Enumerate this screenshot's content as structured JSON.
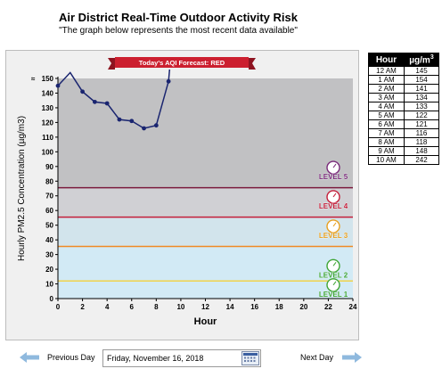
{
  "header": {
    "title": "Air District Real-Time Outdoor Activity Risk",
    "subtitle": "\"The graph below represents the most recent data available\""
  },
  "forecast_banner": "Today's AQI Forecast: RED",
  "chart_data": {
    "type": "line",
    "title": "",
    "xlabel": "Hour",
    "ylabel": "Hourly PM2.5 Concentration (µg/m3)",
    "xlim": [
      0,
      24
    ],
    "ylim": [
      0,
      150
    ],
    "x_ticks": [
      0,
      2,
      4,
      6,
      8,
      10,
      12,
      14,
      16,
      18,
      20,
      22,
      24
    ],
    "y_ticks": [
      0,
      10,
      20,
      30,
      40,
      50,
      60,
      70,
      80,
      90,
      100,
      110,
      120,
      130,
      140,
      150
    ],
    "y_break_symbol": "≈",
    "series": [
      {
        "x": [
          0,
          1,
          2,
          3,
          4,
          5,
          6,
          7,
          8,
          9,
          10
        ],
        "y": [
          145,
          154,
          141,
          134,
          133,
          122,
          121,
          116,
          118,
          148,
          242
        ],
        "color": "#1a2570"
      }
    ],
    "bands": [
      {
        "from": 0,
        "to": 12,
        "color": "#d2eaf5"
      },
      {
        "from": 12,
        "to": 35.5,
        "color": "#d2eaf5"
      },
      {
        "from": 35.5,
        "to": 55.5,
        "color": "#d2e4ec"
      },
      {
        "from": 55.5,
        "to": 75.5,
        "color": "#d0d0d4"
      },
      {
        "from": 75.5,
        "to": 150,
        "color": "#c1c1c3"
      }
    ],
    "threshold_lines": [
      {
        "value": 12,
        "color": "#f0d24a",
        "label": "LEVEL 2",
        "label_color": "#3fa535"
      },
      {
        "value": 35.5,
        "color": "#f08a24",
        "label": "LEVEL 3",
        "label_color": "#e8a020"
      },
      {
        "value": 55.5,
        "color": "#c41e3a",
        "label": "LEVEL 4",
        "label_color": "#c41e3a"
      },
      {
        "value": 75.5,
        "color": "#7a1a3c",
        "label": "LEVEL 5",
        "label_color": "#7a2a7a"
      }
    ],
    "level_badges": [
      {
        "label": "LEVEL 1",
        "color": "#3fa535",
        "y_value": 5
      },
      {
        "label": "LEVEL 2",
        "color": "#3fa535",
        "y_value": 18
      },
      {
        "label": "LEVEL 3",
        "color": "#e8a020",
        "y_value": 45
      },
      {
        "label": "LEVEL 4",
        "color": "#c41e3a",
        "y_value": 65
      },
      {
        "label": "LEVEL 5",
        "color": "#7a2a7a",
        "y_value": 85
      }
    ]
  },
  "hour_table": {
    "headers": [
      "Hour",
      "µg/m3"
    ],
    "rows": [
      [
        "12 AM",
        "145"
      ],
      [
        "1 AM",
        "154"
      ],
      [
        "2 AM",
        "141"
      ],
      [
        "3 AM",
        "134"
      ],
      [
        "4 AM",
        "133"
      ],
      [
        "5 AM",
        "122"
      ],
      [
        "6 AM",
        "121"
      ],
      [
        "7 AM",
        "116"
      ],
      [
        "8 AM",
        "118"
      ],
      [
        "9 AM",
        "148"
      ],
      [
        "10 AM",
        "242"
      ]
    ]
  },
  "navigation": {
    "previous_label": "Previous Day",
    "next_label": "Next Day",
    "date_value": "Friday, November 16, 2018"
  }
}
